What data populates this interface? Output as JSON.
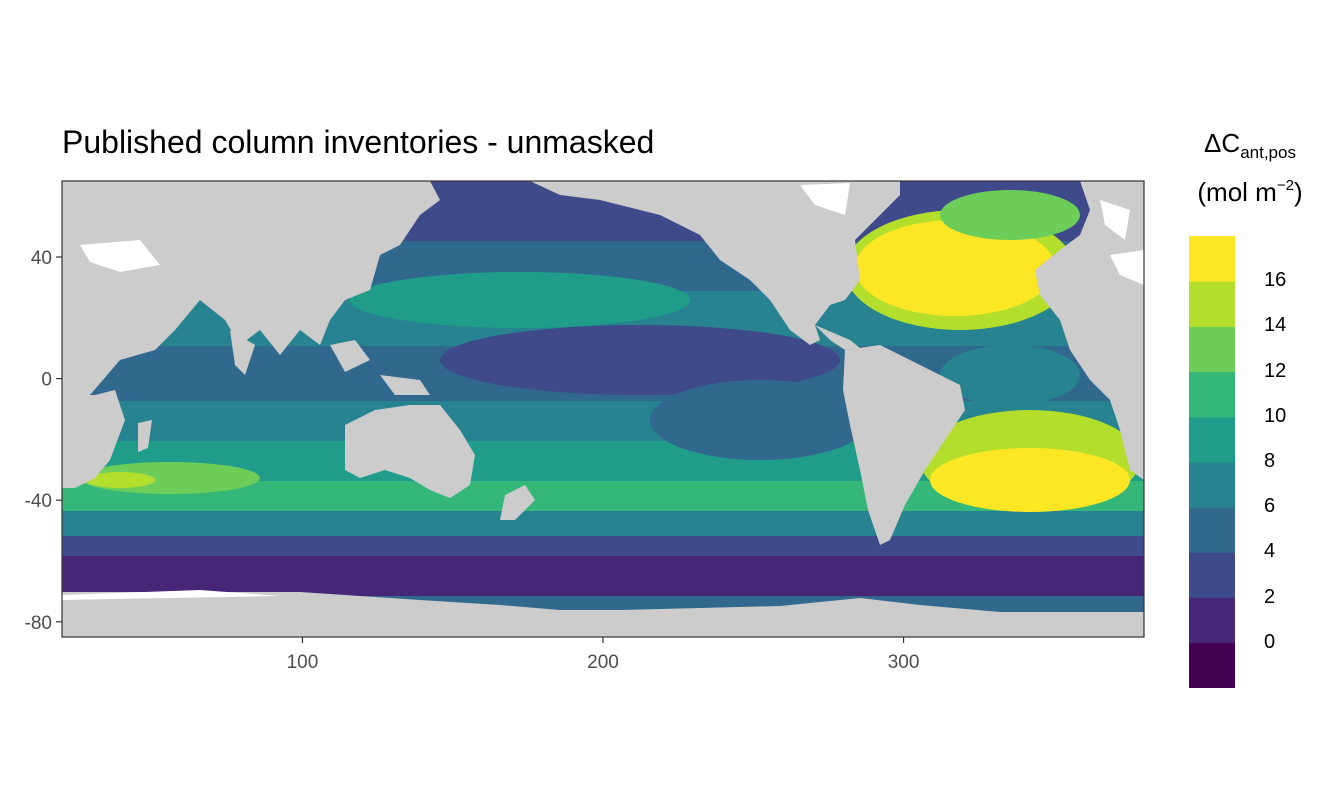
{
  "title": "Published column inventories - unmasked",
  "legend": {
    "title_main": "ΔC",
    "title_sub": "ant,pos",
    "unit_open": "(mol m",
    "unit_sup": "−2",
    "unit_close": ")",
    "breaks": [
      "0",
      "2",
      "4",
      "6",
      "8",
      "10",
      "12",
      "14",
      "16"
    ],
    "colors": [
      "#440154",
      "#482677",
      "#3f4a8a",
      "#31688e",
      "#26838f",
      "#1f9d8a",
      "#35b779",
      "#6cce59",
      "#b4de2c",
      "#fde725"
    ]
  },
  "colors": {
    "land": "#cccccc",
    "ice": "#ffffff",
    "frame": "#333333"
  },
  "axes": {
    "x": {
      "ticks": [
        "100",
        "200",
        "300"
      ],
      "range": [
        20,
        380
      ]
    },
    "y": {
      "ticks": [
        "40",
        "0",
        "-40",
        "-80"
      ],
      "range": [
        -85,
        65
      ]
    }
  }
}
